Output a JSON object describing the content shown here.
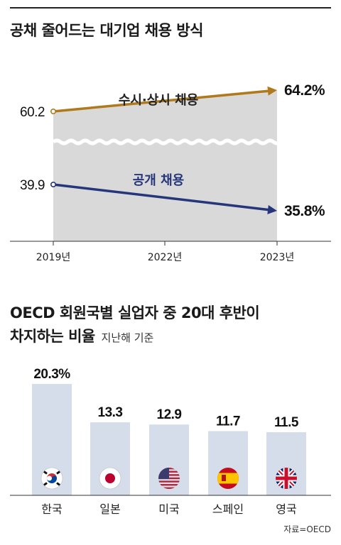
{
  "chart_data": [
    {
      "type": "line",
      "title": "공채 줄어드는 대기업 채용 방식",
      "categories": [
        "2019년",
        "2022년",
        "2023년"
      ],
      "x": [
        "2019년",
        "2023년"
      ],
      "series": [
        {
          "name": "수시·상시 채용",
          "values": [
            60.2,
            64.2
          ],
          "labels": [
            "60.2",
            "64.2%"
          ],
          "color": "#b07a1c"
        },
        {
          "name": "공개 채용",
          "values": [
            39.9,
            35.8
          ],
          "labels": [
            "39.9",
            "35.8%"
          ],
          "color": "#26367a"
        }
      ],
      "area_fill": "#d9d9d9",
      "grid": false
    },
    {
      "type": "bar",
      "title": "OECD 회원국별 실업자 중 20대 후반이 차지하는 비율",
      "title_line1": "OECD 회원국별 실업자 중 20대 후반이",
      "title_line2": "차지하는 비율",
      "subtitle": "지난해 기준",
      "categories": [
        "한국",
        "일본",
        "미국",
        "스페인",
        "영국"
      ],
      "values": [
        20.3,
        13.3,
        12.9,
        11.7,
        11.5
      ],
      "value_labels": [
        "20.3%",
        "13.3",
        "12.9",
        "11.7",
        "11.5"
      ],
      "flags": [
        "korea-flag-icon",
        "japan-flag-icon",
        "usa-flag-icon",
        "spain-flag-icon",
        "uk-flag-icon"
      ],
      "bar_color": "#d4dde9",
      "ylim": [
        0,
        20.3
      ],
      "source": "자료=OECD"
    }
  ]
}
